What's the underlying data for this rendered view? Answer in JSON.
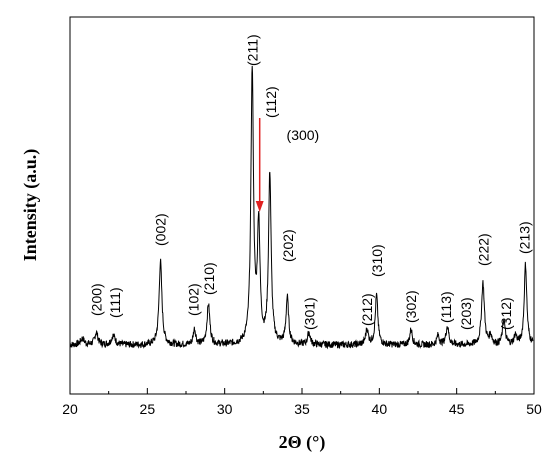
{
  "chart_data": {
    "type": "line",
    "xlabel": "2Θ (°)",
    "ylabel": "Intensity (a.u.)",
    "xlim": [
      20,
      50
    ],
    "xticks": [
      20,
      25,
      30,
      35,
      40,
      45,
      50
    ],
    "yticks_shown": false,
    "grid": false,
    "legend": "none",
    "series": [
      {
        "color": "#000000",
        "peaks": [
          {
            "x": 20.8,
            "y": 2,
            "w": 0.15
          },
          {
            "x": 21.7,
            "y": 4,
            "w": 0.12
          },
          {
            "x": 22.8,
            "y": 3,
            "w": 0.15
          },
          {
            "x": 25.85,
            "y": 27,
            "w": 0.11
          },
          {
            "x": 28.05,
            "y": 5,
            "w": 0.1
          },
          {
            "x": 28.95,
            "y": 13,
            "w": 0.11
          },
          {
            "x": 31.78,
            "y": 88,
            "w": 0.1
          },
          {
            "x": 32.2,
            "y": 38,
            "w": 0.1
          },
          {
            "x": 32.92,
            "y": 55,
            "w": 0.1
          },
          {
            "x": 34.05,
            "y": 15,
            "w": 0.1
          },
          {
            "x": 35.45,
            "y": 4,
            "w": 0.1
          },
          {
            "x": 39.2,
            "y": 5,
            "w": 0.1
          },
          {
            "x": 39.82,
            "y": 16,
            "w": 0.1
          },
          {
            "x": 42.05,
            "y": 5,
            "w": 0.1
          },
          {
            "x": 43.8,
            "y": 3,
            "w": 0.1
          },
          {
            "x": 44.4,
            "y": 6,
            "w": 0.11
          },
          {
            "x": 46.7,
            "y": 20,
            "w": 0.11
          },
          {
            "x": 47.2,
            "y": 3,
            "w": 0.1
          },
          {
            "x": 48.05,
            "y": 8,
            "w": 0.1
          },
          {
            "x": 48.8,
            "y": 3,
            "w": 0.1
          },
          {
            "x": 49.45,
            "y": 26,
            "w": 0.1
          }
        ]
      }
    ],
    "annotations": [
      {
        "text": "(200)",
        "x": 21.7
      },
      {
        "text": "(111)",
        "x": 22.9
      },
      {
        "text": "(002)",
        "x": 25.85
      },
      {
        "text": "(102)",
        "x": 28.0
      },
      {
        "text": "(210)",
        "x": 29.0
      },
      {
        "text": "(211)",
        "x": 31.8
      },
      {
        "text": "(112)",
        "x": 33.0
      },
      {
        "text": "(300)",
        "x": 34.0
      },
      {
        "text": "(202)",
        "x": 34.1
      },
      {
        "text": "(301)",
        "x": 35.5
      },
      {
        "text": "(212)",
        "x": 39.2
      },
      {
        "text": "(310)",
        "x": 39.85
      },
      {
        "text": "(302)",
        "x": 42.05
      },
      {
        "text": "(113)",
        "x": 44.3
      },
      {
        "text": "(203)",
        "x": 45.6
      },
      {
        "text": "(222)",
        "x": 46.75
      },
      {
        "text": "(312)",
        "x": 48.2
      },
      {
        "text": "(213)",
        "x": 49.4
      }
    ],
    "arrow": {
      "color": "#e02020",
      "x": 32.2
    }
  }
}
